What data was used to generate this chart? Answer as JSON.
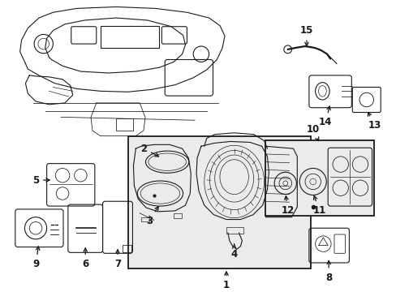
{
  "bg_color": "#ffffff",
  "line_color": "#1a1a1a",
  "box_fill": "#ebebeb",
  "figsize": [
    4.89,
    3.6
  ],
  "dpi": 100,
  "font_size": 8.5
}
